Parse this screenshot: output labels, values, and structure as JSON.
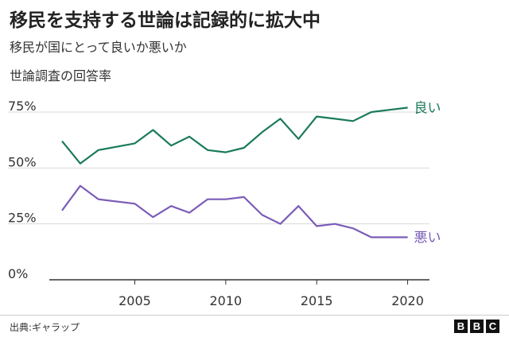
{
  "chart_data": {
    "type": "line",
    "title": "移民を支持する世論は記録的に拡大中",
    "subtitle": "移民が国にとって良いか悪いか",
    "subtitle2": "世論調査の回答率",
    "x": [
      2001,
      2002,
      2003,
      2005,
      2006,
      2007,
      2008,
      2009,
      2010,
      2011,
      2012,
      2013,
      2014,
      2015,
      2016,
      2017,
      2018,
      2019,
      2020
    ],
    "series": [
      {
        "name": "良い",
        "color": "#1a7a5a",
        "values": [
          62,
          52,
          58,
          61,
          67,
          60,
          64,
          58,
          57,
          59,
          66,
          72,
          63,
          73,
          72,
          71,
          75,
          76,
          77
        ]
      },
      {
        "name": "悪い",
        "color": "#7b5cb8",
        "values": [
          31,
          42,
          36,
          34,
          28,
          33,
          30,
          36,
          36,
          37,
          29,
          25,
          33,
          24,
          25,
          23,
          19,
          19,
          19
        ]
      }
    ],
    "ylim": [
      0,
      80
    ],
    "xlim": [
      2000.3,
      2021.2
    ],
    "yticks": [
      0,
      25,
      50,
      75
    ],
    "ytick_labels": [
      "0%",
      "25%",
      "50%",
      "75%"
    ],
    "xticks": [
      2005,
      2010,
      2015,
      2020
    ],
    "xtick_labels": [
      "2005",
      "2010",
      "2015",
      "2020"
    ],
    "grid": true
  },
  "footer": {
    "source": "出典:ギャラップ",
    "logo_letters": [
      "B",
      "B",
      "C"
    ]
  }
}
